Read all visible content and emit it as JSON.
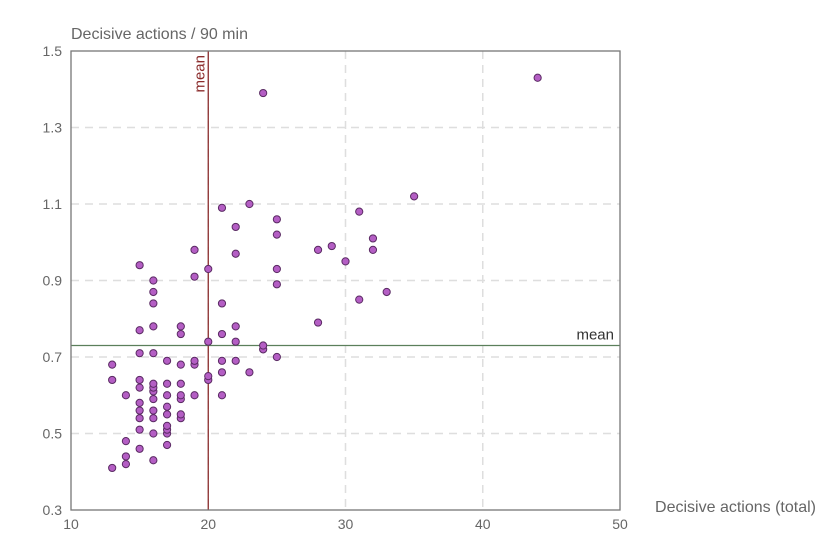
{
  "chart_data": {
    "type": "scatter",
    "title": "",
    "xlabel": "Decisive actions (total)",
    "ylabel": "Decisive actions / 90 min",
    "xlim": [
      10,
      50
    ],
    "ylim": [
      0.3,
      1.5
    ],
    "x_ticks": [
      10,
      20,
      30,
      40,
      50
    ],
    "y_ticks": [
      0.3,
      0.5,
      0.7,
      0.9,
      1.1,
      1.3,
      1.5
    ],
    "x_tick_labels": [
      "10",
      "20",
      "30",
      "40",
      "50"
    ],
    "y_tick_labels": [
      "0.3",
      "0.5",
      "0.7",
      "0.9",
      "1.1",
      "1.3",
      "1.5"
    ],
    "grid": true,
    "grid_style": "dashed",
    "mean_lines": {
      "x": {
        "value": 20,
        "label": "mean",
        "color": "#8b2c2c"
      },
      "y": {
        "value": 0.73,
        "label": "mean",
        "color": "#5b7f5b"
      }
    },
    "point_color": "#b45ec4",
    "point_stroke": "#5a2a63",
    "points": [
      {
        "x": 13,
        "y": 0.41
      },
      {
        "x": 13,
        "y": 0.64
      },
      {
        "x": 13,
        "y": 0.68
      },
      {
        "x": 14,
        "y": 0.42
      },
      {
        "x": 14,
        "y": 0.44
      },
      {
        "x": 14,
        "y": 0.48
      },
      {
        "x": 14,
        "y": 0.6
      },
      {
        "x": 15,
        "y": 0.46
      },
      {
        "x": 15,
        "y": 0.51
      },
      {
        "x": 15,
        "y": 0.54
      },
      {
        "x": 15,
        "y": 0.56
      },
      {
        "x": 15,
        "y": 0.58
      },
      {
        "x": 15,
        "y": 0.62
      },
      {
        "x": 15,
        "y": 0.64
      },
      {
        "x": 15,
        "y": 0.71
      },
      {
        "x": 15,
        "y": 0.77
      },
      {
        "x": 15,
        "y": 0.94
      },
      {
        "x": 16,
        "y": 0.43
      },
      {
        "x": 16,
        "y": 0.5
      },
      {
        "x": 16,
        "y": 0.54
      },
      {
        "x": 16,
        "y": 0.56
      },
      {
        "x": 16,
        "y": 0.59
      },
      {
        "x": 16,
        "y": 0.61
      },
      {
        "x": 16,
        "y": 0.62
      },
      {
        "x": 16,
        "y": 0.63
      },
      {
        "x": 16,
        "y": 0.71
      },
      {
        "x": 16,
        "y": 0.78
      },
      {
        "x": 16,
        "y": 0.84
      },
      {
        "x": 16,
        "y": 0.87
      },
      {
        "x": 16,
        "y": 0.9
      },
      {
        "x": 17,
        "y": 0.47
      },
      {
        "x": 17,
        "y": 0.5
      },
      {
        "x": 17,
        "y": 0.51
      },
      {
        "x": 17,
        "y": 0.52
      },
      {
        "x": 17,
        "y": 0.55
      },
      {
        "x": 17,
        "y": 0.57
      },
      {
        "x": 17,
        "y": 0.6
      },
      {
        "x": 17,
        "y": 0.63
      },
      {
        "x": 17,
        "y": 0.69
      },
      {
        "x": 18,
        "y": 0.54
      },
      {
        "x": 18,
        "y": 0.55
      },
      {
        "x": 18,
        "y": 0.59
      },
      {
        "x": 18,
        "y": 0.6
      },
      {
        "x": 18,
        "y": 0.63
      },
      {
        "x": 18,
        "y": 0.68
      },
      {
        "x": 18,
        "y": 0.76
      },
      {
        "x": 18,
        "y": 0.78
      },
      {
        "x": 19,
        "y": 0.6
      },
      {
        "x": 19,
        "y": 0.68
      },
      {
        "x": 19,
        "y": 0.69
      },
      {
        "x": 19,
        "y": 0.91
      },
      {
        "x": 19,
        "y": 0.98
      },
      {
        "x": 20,
        "y": 0.64
      },
      {
        "x": 20,
        "y": 0.65
      },
      {
        "x": 20,
        "y": 0.74
      },
      {
        "x": 20,
        "y": 0.93
      },
      {
        "x": 21,
        "y": 0.6
      },
      {
        "x": 21,
        "y": 0.66
      },
      {
        "x": 21,
        "y": 0.69
      },
      {
        "x": 21,
        "y": 0.76
      },
      {
        "x": 21,
        "y": 0.84
      },
      {
        "x": 21,
        "y": 1.09
      },
      {
        "x": 22,
        "y": 0.69
      },
      {
        "x": 22,
        "y": 0.74
      },
      {
        "x": 22,
        "y": 0.78
      },
      {
        "x": 22,
        "y": 0.97
      },
      {
        "x": 22,
        "y": 1.04
      },
      {
        "x": 23,
        "y": 0.66
      },
      {
        "x": 23,
        "y": 1.1
      },
      {
        "x": 24,
        "y": 0.72
      },
      {
        "x": 24,
        "y": 0.73
      },
      {
        "x": 24,
        "y": 1.39
      },
      {
        "x": 25,
        "y": 0.7
      },
      {
        "x": 25,
        "y": 0.89
      },
      {
        "x": 25,
        "y": 0.93
      },
      {
        "x": 25,
        "y": 1.02
      },
      {
        "x": 25,
        "y": 1.06
      },
      {
        "x": 28,
        "y": 0.79
      },
      {
        "x": 28,
        "y": 0.98
      },
      {
        "x": 29,
        "y": 0.99
      },
      {
        "x": 30,
        "y": 0.95
      },
      {
        "x": 31,
        "y": 0.85
      },
      {
        "x": 31,
        "y": 1.08
      },
      {
        "x": 32,
        "y": 0.98
      },
      {
        "x": 32,
        "y": 1.01
      },
      {
        "x": 33,
        "y": 0.87
      },
      {
        "x": 35,
        "y": 1.12
      },
      {
        "x": 44,
        "y": 1.43
      }
    ]
  }
}
